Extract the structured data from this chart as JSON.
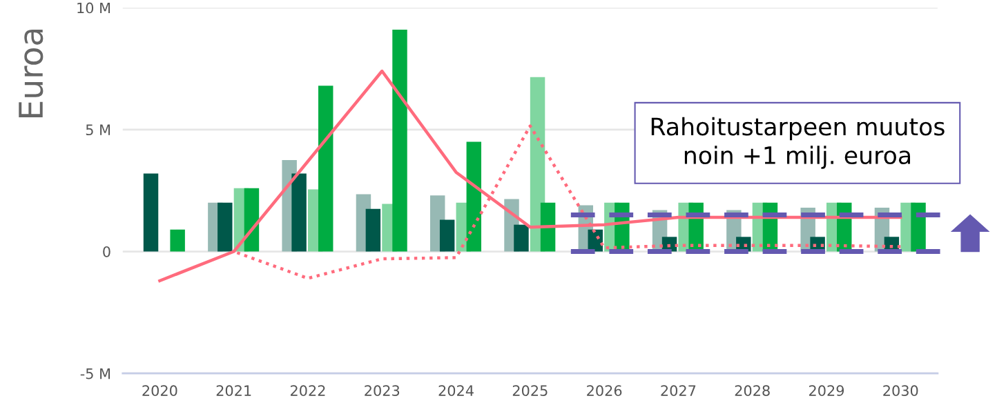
{
  "chart_data": {
    "type": "bar",
    "ylabel": "Euroa",
    "categories": [
      "2020",
      "2021",
      "2022",
      "2023",
      "2024",
      "2025",
      "2026",
      "2027",
      "2028",
      "2029",
      "2030"
    ],
    "series": [
      {
        "color": "#97b9b4",
        "values": [
          null,
          2.0,
          3.75,
          2.35,
          2.3,
          2.15,
          1.9,
          1.7,
          1.7,
          1.8,
          1.8
        ]
      },
      {
        "color": "#00584a",
        "values": [
          3.2,
          2.0,
          3.2,
          1.75,
          1.3,
          1.1,
          0.9,
          0.6,
          0.6,
          0.6,
          0.6
        ]
      },
      {
        "color": "#80d6a0",
        "values": [
          null,
          2.6,
          2.55,
          1.95,
          2.0,
          7.15,
          2.0,
          2.0,
          2.0,
          2.0,
          2.0
        ]
      },
      {
        "color": "#00ac42",
        "values": [
          0.9,
          2.6,
          6.8,
          9.1,
          4.5,
          2.0,
          2.0,
          2.0,
          2.0,
          2.0,
          2.0
        ]
      },
      {
        "type": "line",
        "color": "#ff6b7d",
        "line_style": "solid",
        "values": [
          -1.2,
          0,
          3.7,
          7.4,
          3.25,
          1.0,
          1.1,
          1.4,
          1.4,
          1.4,
          1.4
        ]
      },
      {
        "type": "line",
        "color": "#ff6b7d",
        "line_style": "dotted",
        "values": [
          null,
          0,
          -1.1,
          -0.3,
          -0.25,
          5.15,
          0.15,
          0.25,
          0.25,
          0.25,
          0.2
        ]
      }
    ],
    "ylim": [
      -5,
      10
    ],
    "yticks": [
      {
        "value": -5,
        "label": "-5 M"
      },
      0,
      {
        "value": 5,
        "label": "5 M"
      },
      {
        "value": 10,
        "label": "10 M"
      }
    ],
    "grid": "y",
    "ref_lines": [
      {
        "axis": "y",
        "value": 0,
        "color": "#6459b0",
        "line_style": "dashed"
      },
      {
        "axis": "y",
        "value": 1.5,
        "color": "#6459b0",
        "line_style": "dashed"
      }
    ],
    "annotations": [
      "Rahoitustarpeen muutos\nnoin +1 milj. euroa"
    ],
    "legend": false
  }
}
